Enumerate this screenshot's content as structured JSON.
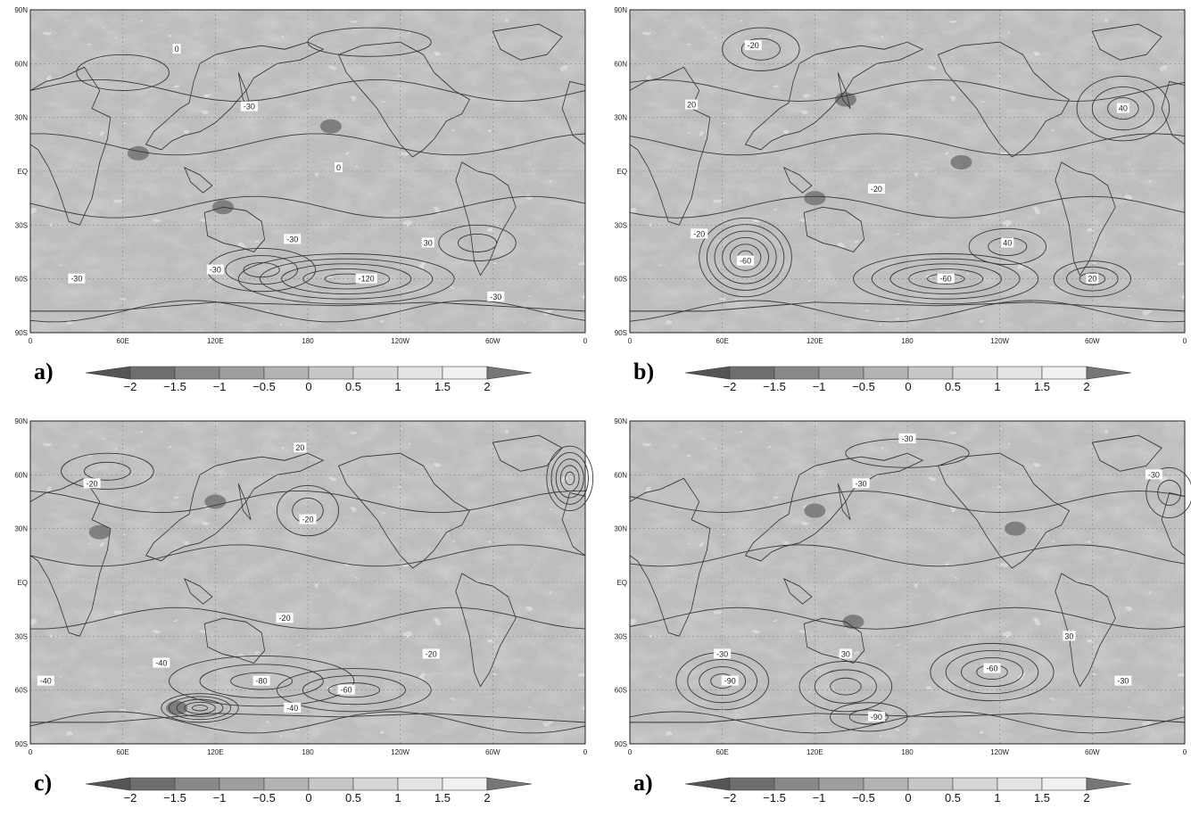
{
  "figure": {
    "lat_labels": [
      "90N",
      "60N",
      "30N",
      "EQ",
      "30S",
      "60S",
      "90S"
    ],
    "lon_labels": [
      "0",
      "60E",
      "120E",
      "180",
      "120W",
      "60W",
      "0"
    ],
    "colorbar": {
      "ticks": [
        "−2",
        "−1.5",
        "−1",
        "−0.5",
        "0",
        "0.5",
        "1",
        "1.5",
        "2"
      ],
      "colors": [
        "#6e6e6e",
        "#888888",
        "#9e9e9e",
        "#b3b3b3",
        "#c6c6c6",
        "#d6d6d6",
        "#e4e4e4",
        "#f0f0f0"
      ]
    },
    "panels": [
      {
        "letter": "a)",
        "contour_labels": [
          {
            "text": "0",
            "lat": 68,
            "lon": 95
          },
          {
            "text": "-30",
            "lat": 36,
            "lon": 142
          },
          {
            "text": "0",
            "lat": 2,
            "lon": 200
          },
          {
            "text": "-30",
            "lat": -38,
            "lon": 170
          },
          {
            "text": "-30",
            "lat": -55,
            "lon": 120
          },
          {
            "text": "-120",
            "lat": -60,
            "lon": 218
          },
          {
            "text": "30",
            "lat": -40,
            "lon": 258
          },
          {
            "text": "-30",
            "lat": -70,
            "lon": 302
          },
          {
            "text": "-30",
            "lat": -60,
            "lon": 30
          }
        ],
        "darks": [
          {
            "lat": -20,
            "lon": 125
          },
          {
            "lat": 10,
            "lon": 70
          },
          {
            "lat": 25,
            "lon": 195
          }
        ]
      },
      {
        "letter": "b)",
        "contour_labels": [
          {
            "text": "-20",
            "lat": 70,
            "lon": 80
          },
          {
            "text": "20",
            "lat": 37,
            "lon": 40
          },
          {
            "text": "-60",
            "lat": -50,
            "lon": 75
          },
          {
            "text": "-20",
            "lat": -35,
            "lon": 45
          },
          {
            "text": "-60",
            "lat": -60,
            "lon": 205
          },
          {
            "text": "40",
            "lat": -40,
            "lon": 245
          },
          {
            "text": "20",
            "lat": -60,
            "lon": 300
          },
          {
            "text": "-20",
            "lat": -10,
            "lon": 160
          },
          {
            "text": "40",
            "lat": 35,
            "lon": 320
          }
        ],
        "darks": [
          {
            "lat": 5,
            "lon": 215
          },
          {
            "lat": -15,
            "lon": 120
          },
          {
            "lat": 40,
            "lon": 140
          }
        ]
      },
      {
        "letter": "c)",
        "contour_labels": [
          {
            "text": "20",
            "lat": 75,
            "lon": 175
          },
          {
            "text": "-20",
            "lat": 55,
            "lon": 40
          },
          {
            "text": "-20",
            "lat": 35,
            "lon": 180
          },
          {
            "text": "-20",
            "lat": -20,
            "lon": 165
          },
          {
            "text": "-40",
            "lat": -45,
            "lon": 85
          },
          {
            "text": "-80",
            "lat": -55,
            "lon": 150
          },
          {
            "text": "-40",
            "lat": -70,
            "lon": 170
          },
          {
            "text": "-20",
            "lat": -40,
            "lon": 260
          },
          {
            "text": "-60",
            "lat": -60,
            "lon": 205
          },
          {
            "text": "-40",
            "lat": -55,
            "lon": 10
          }
        ],
        "darks": [
          {
            "lat": 28,
            "lon": 45
          },
          {
            "lat": 45,
            "lon": 120
          },
          {
            "lat": -70,
            "lon": 95
          }
        ]
      },
      {
        "letter": "a)",
        "contour_labels": [
          {
            "text": "-30",
            "lat": 80,
            "lon": 180
          },
          {
            "text": "-30",
            "lat": 55,
            "lon": 150
          },
          {
            "text": "-30",
            "lat": -40,
            "lon": 60
          },
          {
            "text": "-90",
            "lat": -55,
            "lon": 65
          },
          {
            "text": "30",
            "lat": -40,
            "lon": 140
          },
          {
            "text": "-60",
            "lat": -48,
            "lon": 235
          },
          {
            "text": "-90",
            "lat": -75,
            "lon": 160
          },
          {
            "text": "30",
            "lat": -30,
            "lon": 285
          },
          {
            "text": "-30",
            "lat": -55,
            "lon": 320
          },
          {
            "text": "-30",
            "lat": 60,
            "lon": 340
          }
        ],
        "darks": [
          {
            "lat": 30,
            "lon": 250
          },
          {
            "lat": 40,
            "lon": 120
          },
          {
            "lat": -22,
            "lon": 145
          }
        ]
      }
    ]
  }
}
